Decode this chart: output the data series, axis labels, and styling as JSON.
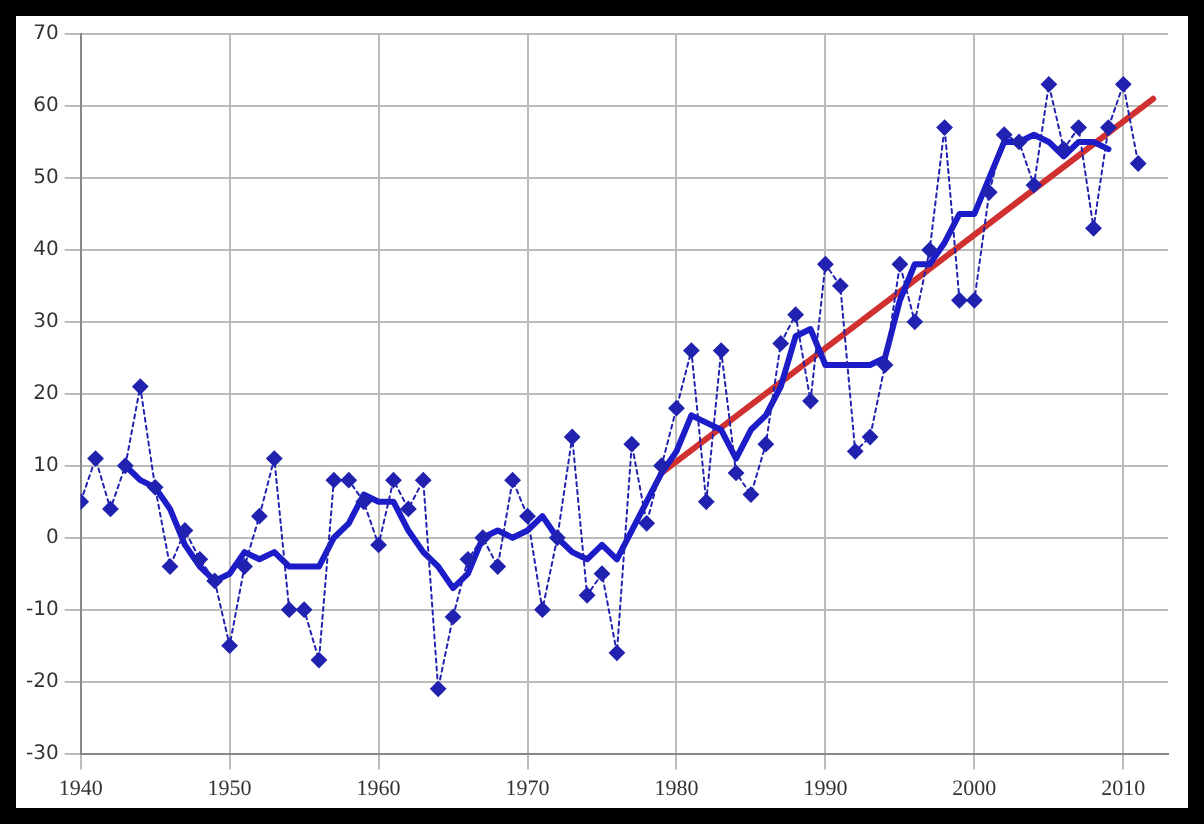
{
  "chart_data": {
    "type": "line",
    "xlim": [
      1940,
      2013
    ],
    "xticks": [
      1940,
      1950,
      1960,
      1970,
      1980,
      1990,
      2000,
      2010
    ],
    "ylim": [
      -30,
      70
    ],
    "yticks": [
      -30,
      -20,
      -10,
      0,
      10,
      20,
      30,
      40,
      50,
      60,
      70
    ],
    "grid": true,
    "legend": false,
    "x": [
      1940,
      1941,
      1942,
      1943,
      1944,
      1945,
      1946,
      1947,
      1948,
      1949,
      1950,
      1951,
      1952,
      1953,
      1954,
      1955,
      1956,
      1957,
      1958,
      1959,
      1960,
      1961,
      1962,
      1963,
      1964,
      1965,
      1966,
      1967,
      1968,
      1969,
      1970,
      1971,
      1972,
      1973,
      1974,
      1975,
      1976,
      1977,
      1978,
      1979,
      1980,
      1981,
      1982,
      1983,
      1984,
      1985,
      1986,
      1987,
      1988,
      1989,
      1990,
      1991,
      1992,
      1993,
      1994,
      1995,
      1996,
      1997,
      1998,
      1999,
      2000,
      2001,
      2002,
      2003,
      2004,
      2005,
      2006,
      2007,
      2008,
      2009,
      2010,
      2011
    ],
    "series": [
      {
        "color": "#2222b0",
        "marker": "diamond",
        "line_style": "dotted",
        "values": [
          5,
          11,
          4,
          10,
          21,
          7,
          -4,
          1,
          -3,
          -6,
          -15,
          -4,
          3,
          11,
          -10,
          -10,
          -17,
          8,
          8,
          5,
          -1,
          8,
          4,
          8,
          -21,
          -11,
          -3,
          0,
          -4,
          8,
          3,
          -10,
          0,
          14,
          -8,
          -5,
          -16,
          13,
          2,
          10,
          18,
          26,
          5,
          26,
          9,
          6,
          13,
          27,
          31,
          19,
          38,
          35,
          12,
          14,
          24,
          38,
          30,
          40,
          57,
          33,
          33,
          48,
          56,
          55,
          49,
          63,
          54,
          57,
          43,
          57,
          63,
          52
        ]
      },
      {
        "color": "#1c1cc8",
        "marker": "none",
        "line_style": "solid",
        "x": [
          1943,
          1944,
          1945,
          1946,
          1947,
          1948,
          1949,
          1950,
          1951,
          1952,
          1953,
          1954,
          1955,
          1956,
          1957,
          1958,
          1959,
          1960,
          1961,
          1962,
          1963,
          1964,
          1965,
          1966,
          1967,
          1968,
          1969,
          1970,
          1971,
          1972,
          1973,
          1974,
          1975,
          1976,
          1977,
          1978,
          1979,
          1980,
          1981,
          1982,
          1983,
          1984,
          1985,
          1986,
          1987,
          1988,
          1989,
          1990,
          1991,
          1992,
          1993,
          1994,
          1995,
          1996,
          1997,
          1998,
          1999,
          2000,
          2001,
          2002,
          2003,
          2004,
          2005,
          2006,
          2007,
          2008,
          2009
        ],
        "values": [
          10,
          8,
          7,
          4,
          -1,
          -4,
          -6,
          -5,
          -2,
          -3,
          -2,
          -4,
          -4,
          -4,
          0,
          2,
          6,
          5,
          5,
          1,
          -2,
          -4,
          -7,
          -5,
          0,
          1,
          0,
          1,
          3,
          0,
          -2,
          -3,
          -1,
          -3,
          1,
          5,
          9,
          12,
          17,
          16,
          15,
          11,
          15,
          17,
          21,
          28,
          29,
          24,
          24,
          24,
          24,
          25,
          33,
          38,
          38,
          41,
          45,
          45,
          50,
          55,
          55,
          56,
          55,
          53,
          55,
          55,
          54
        ]
      },
      {
        "color": "#d03030",
        "marker": "none",
        "line_style": "solid",
        "x": [
          1979,
          2012
        ],
        "values": [
          9,
          61
        ]
      }
    ]
  }
}
